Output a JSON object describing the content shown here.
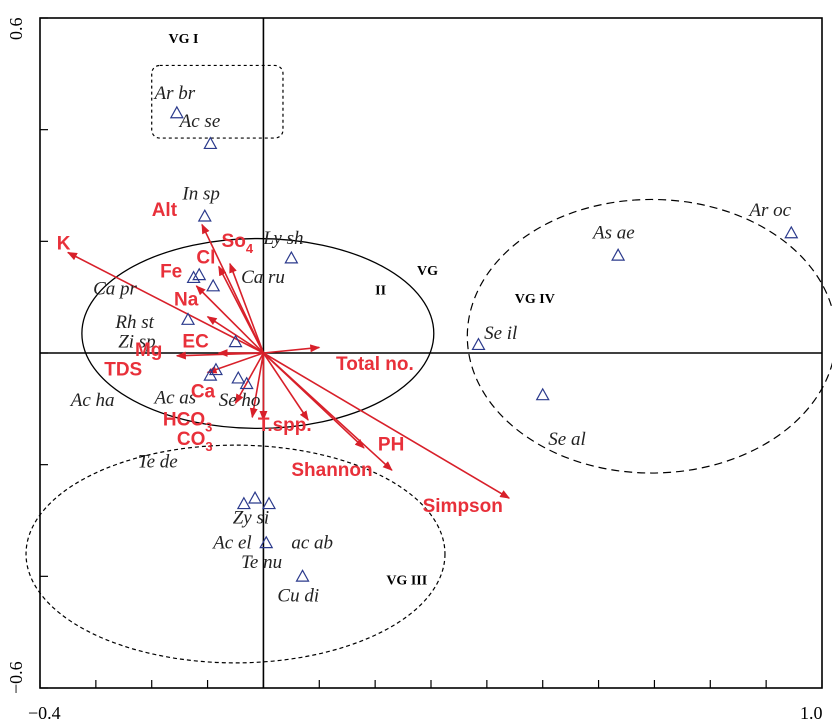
{
  "chart_data": {
    "type": "scatter",
    "title": "",
    "xlabel": "",
    "ylabel": "",
    "xlim": [
      -0.4,
      1.0
    ],
    "ylim": [
      -0.6,
      0.6
    ],
    "x_tick_labels": [
      "−0.4",
      "1.0"
    ],
    "y_tick_labels": [
      "0.6",
      "−0.6"
    ],
    "grid": false,
    "colors": {
      "species_marker": "#2b3a8c",
      "environment_vector": "#d8202a",
      "environment_label": "#e8303a"
    },
    "species": [
      {
        "name": "Ar br",
        "x": -0.155,
        "y": 0.43
      },
      {
        "name": "Ac se",
        "x": -0.095,
        "y": 0.375
      },
      {
        "name": "In sp",
        "x": -0.105,
        "y": 0.245
      },
      {
        "name": "Ly sh",
        "x": 0.05,
        "y": 0.17
      },
      {
        "name": "Ca pr",
        "x": -0.115,
        "y": 0.14
      },
      {
        "name": "Ca ru",
        "x": -0.09,
        "y": 0.12
      },
      {
        "name": "Rh st",
        "x": -0.135,
        "y": 0.06
      },
      {
        "name": "Zi sp",
        "x": -0.05,
        "y": 0.02
      },
      {
        "name": "Ac ha",
        "x": -0.085,
        "y": -0.03
      },
      {
        "name": "Ac as",
        "x": -0.095,
        "y": -0.04
      },
      {
        "name": "Se ho",
        "x": -0.03,
        "y": -0.055
      },
      {
        "name": "Zy si",
        "x": -0.035,
        "y": -0.27
      },
      {
        "name": "Ac el",
        "x": -0.015,
        "y": -0.26
      },
      {
        "name": "ac ab",
        "x": 0.01,
        "y": -0.27
      },
      {
        "name": "Te nu",
        "x": 0.005,
        "y": -0.34
      },
      {
        "name": "Cu di",
        "x": 0.07,
        "y": -0.4
      },
      {
        "name": "Se il",
        "x": 0.385,
        "y": 0.015
      },
      {
        "name": "As ae",
        "x": 0.635,
        "y": 0.175
      },
      {
        "name": "Se al",
        "x": 0.5,
        "y": -0.075
      },
      {
        "name": "Ar oc",
        "x": 0.945,
        "y": 0.215
      }
    ],
    "unlabeled_species": [
      {
        "x": -0.125,
        "y": 0.135
      },
      {
        "x": -0.045,
        "y": -0.045
      }
    ],
    "species_label_positions": [
      {
        "name": "Ar br",
        "x": -0.195,
        "y": 0.455
      },
      {
        "name": "Ac se",
        "x": -0.15,
        "y": 0.405
      },
      {
        "name": "In sp",
        "x": -0.145,
        "y": 0.275
      },
      {
        "name": "Ly sh",
        "x": 0.0,
        "y": 0.195
      },
      {
        "name": "Ca pr",
        "x": -0.305,
        "y": 0.105
      },
      {
        "name": "Ca ru",
        "x": -0.04,
        "y": 0.125
      },
      {
        "name": "Rh st",
        "x": -0.265,
        "y": 0.045
      },
      {
        "name": "Zi sp",
        "x": -0.26,
        "y": 0.01
      },
      {
        "name": "Ac ha",
        "x": -0.345,
        "y": -0.095
      },
      {
        "name": "Ac as",
        "x": -0.195,
        "y": -0.09
      },
      {
        "name": "Se ho",
        "x": -0.08,
        "y": -0.095
      },
      {
        "name": "Te de",
        "x": -0.225,
        "y": -0.205
      },
      {
        "name": "Zy si",
        "x": -0.055,
        "y": -0.305
      },
      {
        "name": "Ac el",
        "x": -0.09,
        "y": -0.35
      },
      {
        "name": "ac ab",
        "x": 0.05,
        "y": -0.35
      },
      {
        "name": "Te nu",
        "x": -0.04,
        "y": -0.385
      },
      {
        "name": "Cu di",
        "x": 0.025,
        "y": -0.445
      },
      {
        "name": "Se il",
        "x": 0.395,
        "y": 0.025
      },
      {
        "name": "As ae",
        "x": 0.59,
        "y": 0.205
      },
      {
        "name": "Se al",
        "x": 0.51,
        "y": -0.165
      },
      {
        "name": "Ar oc",
        "x": 0.87,
        "y": 0.245
      }
    ],
    "environmental_variables": [
      {
        "name": "Alt",
        "x": -0.11,
        "y": 0.23,
        "label_x": -0.2,
        "label_y": 0.245
      },
      {
        "name": "K",
        "x": -0.35,
        "y": 0.18,
        "label_x": -0.37,
        "label_y": 0.185
      },
      {
        "name": "So",
        "subscript": "4",
        "x": -0.06,
        "y": 0.16,
        "label_x": -0.075,
        "label_y": 0.19
      },
      {
        "name": "Cl",
        "x": -0.08,
        "y": 0.155,
        "label_x": -0.12,
        "label_y": 0.16
      },
      {
        "name": "Fe",
        "x": -0.12,
        "y": 0.12,
        "label_x": -0.185,
        "label_y": 0.135
      },
      {
        "name": "Na",
        "x": -0.1,
        "y": 0.065,
        "label_x": -0.16,
        "label_y": 0.085
      },
      {
        "name": "EC",
        "x": -0.08,
        "y": 0.0,
        "label_x": -0.145,
        "label_y": 0.01
      },
      {
        "name": "Mg",
        "x": -0.155,
        "y": -0.005,
        "label_x": -0.23,
        "label_y": -0.005
      },
      {
        "name": "TDS",
        "x": -0.1,
        "y": -0.035,
        "label_x": -0.285,
        "label_y": -0.04
      },
      {
        "name": "Ca",
        "x": -0.05,
        "y": -0.09,
        "label_x": -0.13,
        "label_y": -0.08
      },
      {
        "name": "HCO",
        "subscript": "3",
        "x": -0.02,
        "y": -0.115,
        "label_x": -0.18,
        "label_y": -0.13
      },
      {
        "name": "CO",
        "subscript": "3",
        "x": 0.0,
        "y": -0.12,
        "label_x": -0.155,
        "label_y": -0.165
      },
      {
        "name": "Total no.",
        "x": 0.1,
        "y": 0.01,
        "label_x": 0.13,
        "label_y": -0.03
      },
      {
        "name": "T.spp.",
        "x": 0.08,
        "y": -0.12,
        "label_x": -0.01,
        "label_y": -0.14
      },
      {
        "name": "PH",
        "x": 0.18,
        "y": -0.17,
        "label_x": 0.205,
        "label_y": -0.175
      },
      {
        "name": "Shannon",
        "x": 0.23,
        "y": -0.21,
        "label_x": 0.05,
        "label_y": -0.22
      },
      {
        "name": "Simpson",
        "x": 0.44,
        "y": -0.26,
        "label_x": 0.285,
        "label_y": -0.285
      }
    ],
    "vegetation_groups": [
      {
        "name": "VG I",
        "label_x": -0.17,
        "label_y": 0.555
      },
      {
        "name": "VG",
        "label_x": 0.275,
        "label_y": 0.14,
        "second_line": "II",
        "second_line_x": 0.2,
        "second_line_y": 0.105
      },
      {
        "name": "VG  IV",
        "label_x": 0.45,
        "label_y": 0.09
      },
      {
        "name": "VG III",
        "label_x": 0.22,
        "label_y": -0.415
      }
    ]
  }
}
